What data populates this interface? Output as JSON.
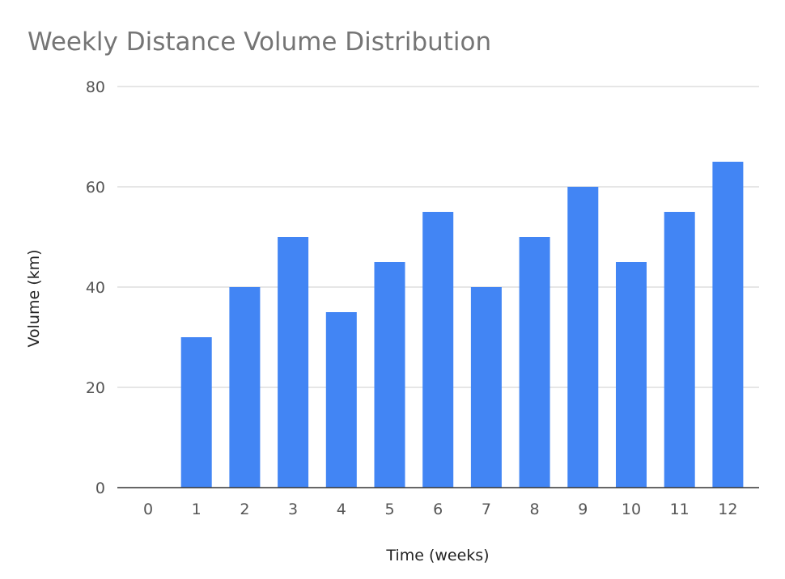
{
  "chart_data": {
    "type": "bar",
    "title": "Weekly Distance Volume Distribution",
    "xlabel": "Time (weeks)",
    "ylabel": "Volume (km)",
    "categories": [
      "0",
      "1",
      "2",
      "3",
      "4",
      "5",
      "6",
      "7",
      "8",
      "9",
      "10",
      "11",
      "12"
    ],
    "series": [
      {
        "name": "Volume (km)",
        "values": [
          0,
          30,
          40,
          50,
          35,
          45,
          55,
          40,
          50,
          60,
          45,
          55,
          65
        ],
        "color": "#4285f4"
      }
    ],
    "ylim": [
      0,
      80
    ],
    "yticks": [
      "0",
      "20",
      "40",
      "60",
      "80"
    ],
    "grid": true,
    "legend": "none"
  },
  "colors": {
    "bar": "#4285f4",
    "grid": "#cccccc",
    "baseline": "#333333",
    "title": "#757575"
  }
}
